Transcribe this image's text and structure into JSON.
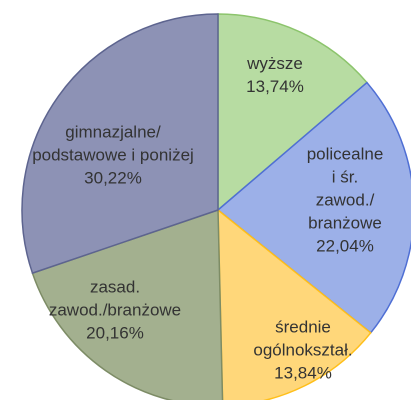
{
  "chart_data": {
    "type": "pie",
    "categories": [
      "wyższe",
      "policealne\ni śr. zawod./\nbranżowe",
      "średnie\nogólnokształ.",
      "zasad.\nzawod./branżowe",
      "gimnazjalne/\npodstawowe i poniżej"
    ],
    "values": [
      13.74,
      22.04,
      13.84,
      20.16,
      30.22
    ],
    "value_labels": [
      "13,74%",
      "22,04%",
      "13,84%",
      "20,16%",
      "30,22%"
    ],
    "colors": [
      "#b7dca2",
      "#9cb0e8",
      "#ffd77a",
      "#a3b08f",
      "#8d92b5"
    ],
    "edge_colors": [
      "#8cc46c",
      "#4f6fd4",
      "#ffbf1a",
      "#7d8c66",
      "#5d648f"
    ]
  }
}
